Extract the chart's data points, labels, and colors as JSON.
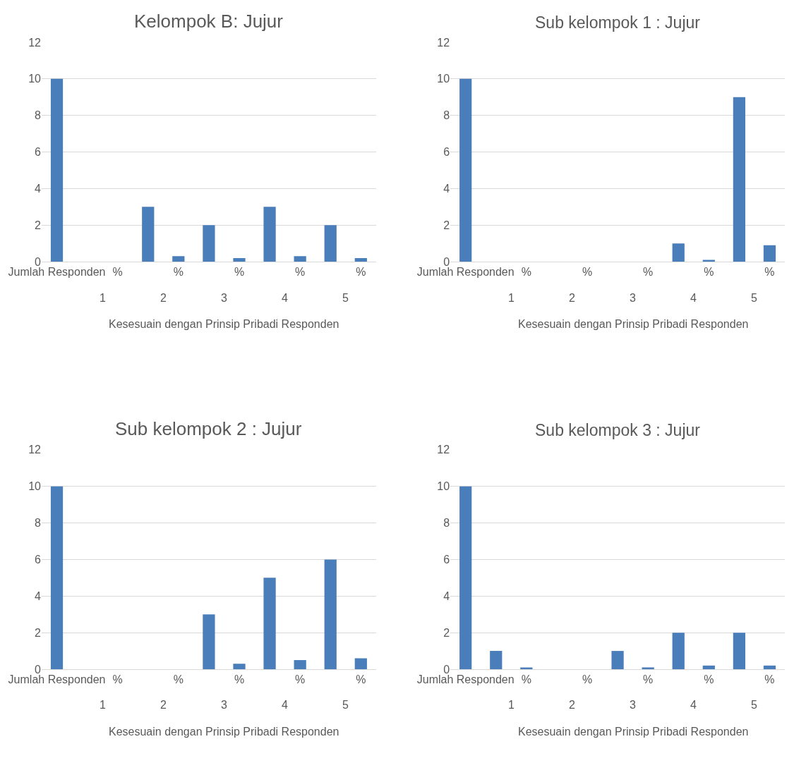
{
  "chart_data": [
    {
      "type": "bar",
      "title": "Kelompok B: Jujur",
      "categories": [
        "Jumlah Responden",
        null,
        "%",
        null,
        "%",
        null,
        "%",
        null,
        "%",
        null,
        "%"
      ],
      "values": [
        10,
        0,
        0,
        3,
        0.3,
        2,
        0.2,
        3,
        0.3,
        2,
        0.2
      ],
      "color": "#4a7ebb",
      "ylim": [
        0,
        12
      ],
      "yticks": [
        0,
        2,
        4,
        6,
        8,
        10,
        12
      ],
      "grid": "y",
      "annotations": [
        "1",
        "2",
        "3",
        "4",
        "5",
        "Kesesuain dengan Prinsip Pribadi Responden"
      ]
    },
    {
      "type": "bar",
      "title": "Sub kelompok 1 : Jujur",
      "categories": [
        "Jumlah Responden",
        null,
        "%",
        null,
        "%",
        null,
        "%",
        null,
        "%",
        null,
        "%"
      ],
      "values": [
        10,
        0,
        0,
        0,
        0,
        0,
        0,
        1,
        0.1,
        9,
        0.9
      ],
      "color": "#4a7ebb",
      "ylim": [
        0,
        12
      ],
      "yticks": [
        0,
        2,
        4,
        6,
        8,
        10,
        12
      ],
      "grid": "y",
      "annotations": [
        "1",
        "2",
        "3",
        "4",
        "5",
        "Kesesuain dengan Prinsip Pribadi Responden"
      ]
    },
    {
      "type": "bar",
      "title": "Sub kelompok 2 : Jujur",
      "categories": [
        "Jumlah Responden",
        null,
        "%",
        null,
        "%",
        null,
        "%",
        null,
        "%",
        null,
        "%"
      ],
      "values": [
        10,
        0,
        0,
        0,
        0,
        3,
        0.3,
        5,
        0.5,
        6,
        0.6
      ],
      "color": "#4a7ebb",
      "ylim": [
        0,
        12
      ],
      "yticks": [
        0,
        2,
        4,
        6,
        8,
        10,
        12
      ],
      "grid": "y",
      "annotations": [
        "1",
        "2",
        "3",
        "4",
        "5",
        "Kesesuain dengan Prinsip Pribadi Responden"
      ]
    },
    {
      "type": "bar",
      "title": "Sub kelompok 3 : Jujur",
      "categories": [
        "Jumlah Responden",
        null,
        "%",
        null,
        "%",
        null,
        "%",
        null,
        "%",
        null,
        "%"
      ],
      "values": [
        10,
        1,
        0.1,
        0,
        0,
        1,
        0.1,
        2,
        0.2,
        2,
        0.2
      ],
      "color": "#4a7ebb",
      "ylim": [
        0,
        12
      ],
      "yticks": [
        0,
        2,
        4,
        6,
        8,
        10,
        12
      ],
      "grid": "y",
      "annotations": [
        "1",
        "2",
        "3",
        "4",
        "5",
        "Kesesuain dengan Prinsip Pribadi Responden"
      ]
    }
  ]
}
